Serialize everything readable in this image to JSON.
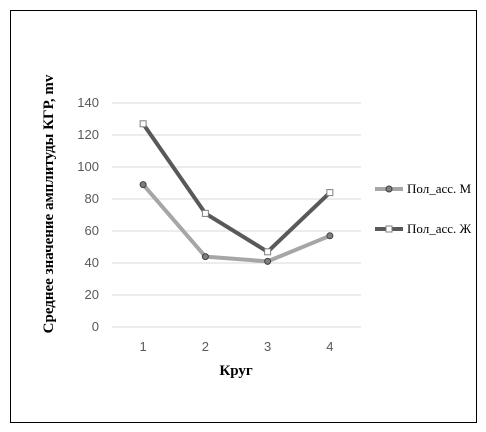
{
  "chart_data": {
    "type": "line",
    "categories": [
      "1",
      "2",
      "3",
      "4"
    ],
    "series": [
      {
        "name": "Пол_асс. М",
        "values": [
          89,
          44,
          41,
          57
        ],
        "color": "#a6a6a6",
        "marker": "circle"
      },
      {
        "name": "Пол_асс. Ж",
        "values": [
          127,
          71,
          47,
          84
        ],
        "color": "#595959",
        "marker": "square"
      }
    ],
    "xlabel": "Круг",
    "ylabel": "Среднее значение амплитуды КГР, mv",
    "ylim": [
      0,
      140
    ],
    "yticks": [
      0,
      20,
      40,
      60,
      80,
      100,
      120,
      140
    ],
    "grid": true,
    "legend_position": "right"
  }
}
